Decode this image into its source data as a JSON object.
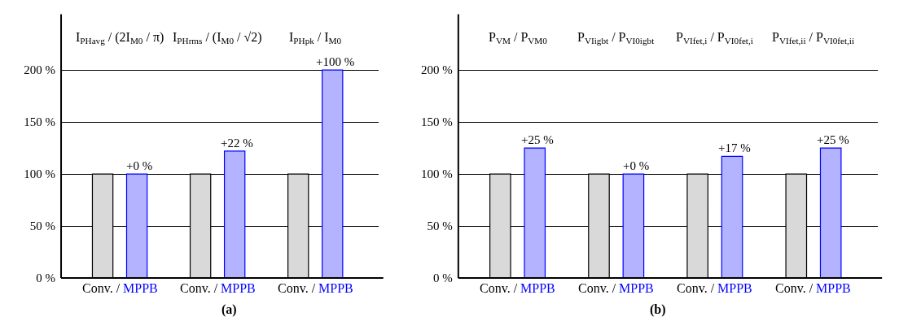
{
  "chart_data": [
    {
      "type": "bar",
      "title": "(a)",
      "categories": [
        "I$_{PHavg}$ / (2I$_{M0}$ / π)",
        "I$_{PHrms}$ / (I$_{M0}$ / √2)",
        "I$_{PHpk}$ / I$_{M0}$"
      ],
      "series": [
        {
          "name": "Conv.",
          "color": "#d9d9d9",
          "values": [
            100,
            100,
            100
          ]
        },
        {
          "name": "MPPB",
          "color": "#b3b3ff",
          "values": [
            100,
            122,
            200
          ]
        }
      ],
      "annotations": [
        "+0 %",
        "+22 %",
        "+100 %",
        "/",
        "/",
        "/"
      ],
      "ylim": [
        0,
        255
      ],
      "yticks": [
        {
          "value": 0,
          "label": "0 %"
        },
        {
          "value": 50,
          "label": "50 %"
        },
        {
          "value": 100,
          "label": "100 %"
        },
        {
          "value": 150,
          "label": "150 %"
        },
        {
          "value": 200,
          "label": "200 %"
        }
      ],
      "grid": "y",
      "legend": false
    },
    {
      "type": "bar",
      "title": "(b)",
      "categories": [
        "P$_{VM}$ / P$_{VM0}$",
        "P$_{VIigbt}$ / P$_{VI0igbt}$",
        "P$_{VIfet,i}$ / P$_{VI0fet,i}$",
        "P$_{VIfet,ii}$ / P$_{VI0fet,ii}$"
      ],
      "series": [
        {
          "name": "Conv.",
          "color": "#d9d9d9",
          "values": [
            100,
            100,
            100,
            100
          ]
        },
        {
          "name": "MPPB",
          "color": "#b3b3ff",
          "values": [
            125,
            100,
            117,
            125
          ]
        }
      ],
      "annotations": [
        "+25 %",
        "+0 %",
        "+17 %",
        "+25 %",
        "/",
        "/",
        "/",
        "/"
      ],
      "ylim": [
        0,
        255
      ],
      "yticks": [
        {
          "value": 0,
          "label": "0 %"
        },
        {
          "value": 50,
          "label": "50 %"
        },
        {
          "value": 100,
          "label": "100 %"
        },
        {
          "value": 150,
          "label": "150 %"
        },
        {
          "value": 200,
          "label": "200 %"
        }
      ],
      "grid": "y",
      "legend": false
    }
  ]
}
